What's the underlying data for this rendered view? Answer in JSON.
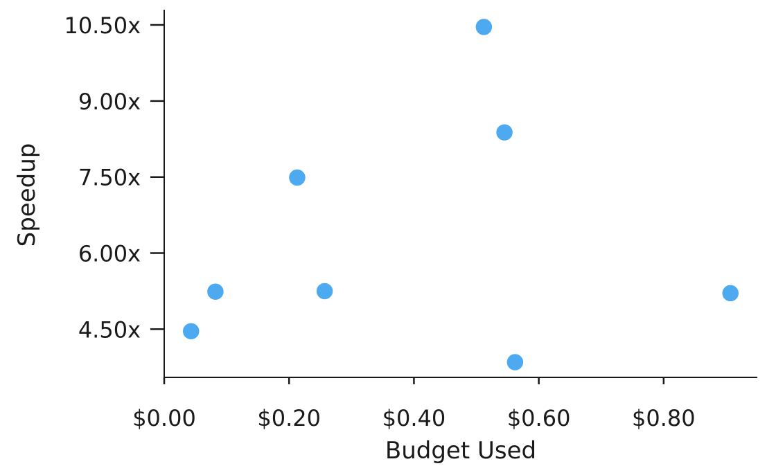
{
  "chart_data": {
    "type": "scatter",
    "title": "",
    "xlabel": "Budget Used",
    "ylabel": "Speedup",
    "xlim": [
      0.0,
      0.95
    ],
    "ylim": [
      3.55,
      10.8
    ],
    "x_ticks": [
      0.0,
      0.2,
      0.4,
      0.6,
      0.8
    ],
    "x_tick_labels": [
      "$0.00",
      "$0.20",
      "$0.40",
      "$0.60",
      "$0.80"
    ],
    "y_ticks": [
      4.5,
      6.0,
      7.5,
      9.0,
      10.5
    ],
    "y_tick_labels": [
      "4.50x",
      "6.00x",
      "7.50x",
      "9.00x",
      "10.50x"
    ],
    "grid": false,
    "color": "#4daaf1",
    "points": [
      {
        "x": 0.043,
        "y": 4.46
      },
      {
        "x": 0.082,
        "y": 5.24
      },
      {
        "x": 0.213,
        "y": 7.49
      },
      {
        "x": 0.257,
        "y": 5.25
      },
      {
        "x": 0.512,
        "y": 10.46
      },
      {
        "x": 0.545,
        "y": 8.38
      },
      {
        "x": 0.562,
        "y": 3.85
      },
      {
        "x": 0.907,
        "y": 5.21
      }
    ]
  }
}
